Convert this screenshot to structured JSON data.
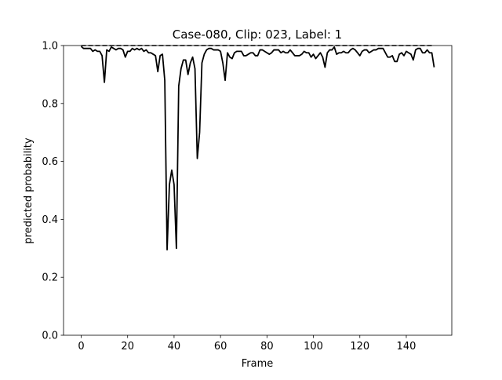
{
  "chart_data": {
    "type": "line",
    "title": "Case-080, Clip: 023, Label: 1",
    "x_label": "Frame",
    "y_label": "predicted probability",
    "x": [
      0,
      1,
      2,
      3,
      4,
      5,
      6,
      7,
      8,
      9,
      10,
      11,
      12,
      13,
      14,
      15,
      16,
      17,
      18,
      19,
      20,
      21,
      22,
      23,
      24,
      25,
      26,
      27,
      28,
      29,
      30,
      31,
      32,
      33,
      34,
      35,
      36,
      37,
      38,
      39,
      40,
      41,
      42,
      43,
      44,
      45,
      46,
      47,
      48,
      49,
      50,
      51,
      52,
      53,
      54,
      55,
      56,
      57,
      58,
      59,
      60,
      61,
      62,
      63,
      64,
      65,
      66,
      67,
      68,
      69,
      70,
      71,
      72,
      73,
      74,
      75,
      76,
      77,
      78,
      79,
      80,
      81,
      82,
      83,
      84,
      85,
      86,
      87,
      88,
      89,
      90,
      91,
      92,
      93,
      94,
      95,
      96,
      97,
      98,
      99,
      100,
      101,
      102,
      103,
      104,
      105,
      106,
      107,
      108,
      109,
      110,
      111,
      112,
      113,
      114,
      115,
      116,
      117,
      118,
      119,
      120,
      121,
      122,
      123,
      124,
      125,
      126,
      127,
      128,
      129,
      130,
      131,
      132,
      133,
      134,
      135,
      136,
      137,
      138,
      139,
      140,
      141,
      142,
      143,
      144,
      145,
      146,
      147,
      148,
      149,
      150,
      151,
      152
    ],
    "series": [
      {
        "color": "#000000",
        "values": [
          0.997,
          0.99,
          0.99,
          0.99,
          0.99,
          0.98,
          0.985,
          0.98,
          0.98,
          0.965,
          0.873,
          0.985,
          0.98,
          0.995,
          0.99,
          0.985,
          0.99,
          0.99,
          0.985,
          0.96,
          0.98,
          0.98,
          0.99,
          0.985,
          0.99,
          0.985,
          0.99,
          0.98,
          0.985,
          0.975,
          0.975,
          0.97,
          0.965,
          0.91,
          0.965,
          0.97,
          0.88,
          0.295,
          0.52,
          0.57,
          0.52,
          0.3,
          0.86,
          0.92,
          0.95,
          0.95,
          0.9,
          0.94,
          0.96,
          0.92,
          0.61,
          0.7,
          0.94,
          0.97,
          0.985,
          0.99,
          0.99,
          0.985,
          0.985,
          0.985,
          0.98,
          0.94,
          0.88,
          0.975,
          0.96,
          0.955,
          0.975,
          0.98,
          0.98,
          0.98,
          0.965,
          0.965,
          0.97,
          0.975,
          0.975,
          0.965,
          0.965,
          0.985,
          0.985,
          0.98,
          0.975,
          0.97,
          0.975,
          0.985,
          0.985,
          0.985,
          0.975,
          0.98,
          0.975,
          0.975,
          0.985,
          0.975,
          0.965,
          0.965,
          0.965,
          0.97,
          0.98,
          0.975,
          0.975,
          0.96,
          0.97,
          0.955,
          0.965,
          0.975,
          0.96,
          0.925,
          0.975,
          0.985,
          0.985,
          0.995,
          0.97,
          0.975,
          0.975,
          0.98,
          0.975,
          0.975,
          0.985,
          0.99,
          0.985,
          0.975,
          0.965,
          0.98,
          0.985,
          0.985,
          0.975,
          0.98,
          0.985,
          0.985,
          0.99,
          0.99,
          0.99,
          0.975,
          0.96,
          0.96,
          0.965,
          0.945,
          0.945,
          0.97,
          0.975,
          0.965,
          0.98,
          0.975,
          0.97,
          0.95,
          0.985,
          0.99,
          0.99,
          0.975,
          0.975,
          0.985,
          0.975,
          0.975,
          0.925
        ]
      }
    ],
    "hline": {
      "y": 1,
      "color": "#000000",
      "dashed": true
    },
    "xlim": [
      -7.6,
      159.6
    ],
    "ylim": [
      0,
      1
    ],
    "xticks": [
      0,
      20,
      40,
      60,
      80,
      100,
      120,
      140
    ],
    "yticks": [
      {
        "value": 0,
        "label": "0.0"
      },
      {
        "value": 0.2,
        "label": "0.2"
      },
      {
        "value": 0.4,
        "label": "0.4"
      },
      {
        "value": 0.6,
        "label": "0.6"
      },
      {
        "value": 0.8,
        "label": "0.8"
      },
      {
        "value": 1,
        "label": "1.0"
      }
    ]
  }
}
